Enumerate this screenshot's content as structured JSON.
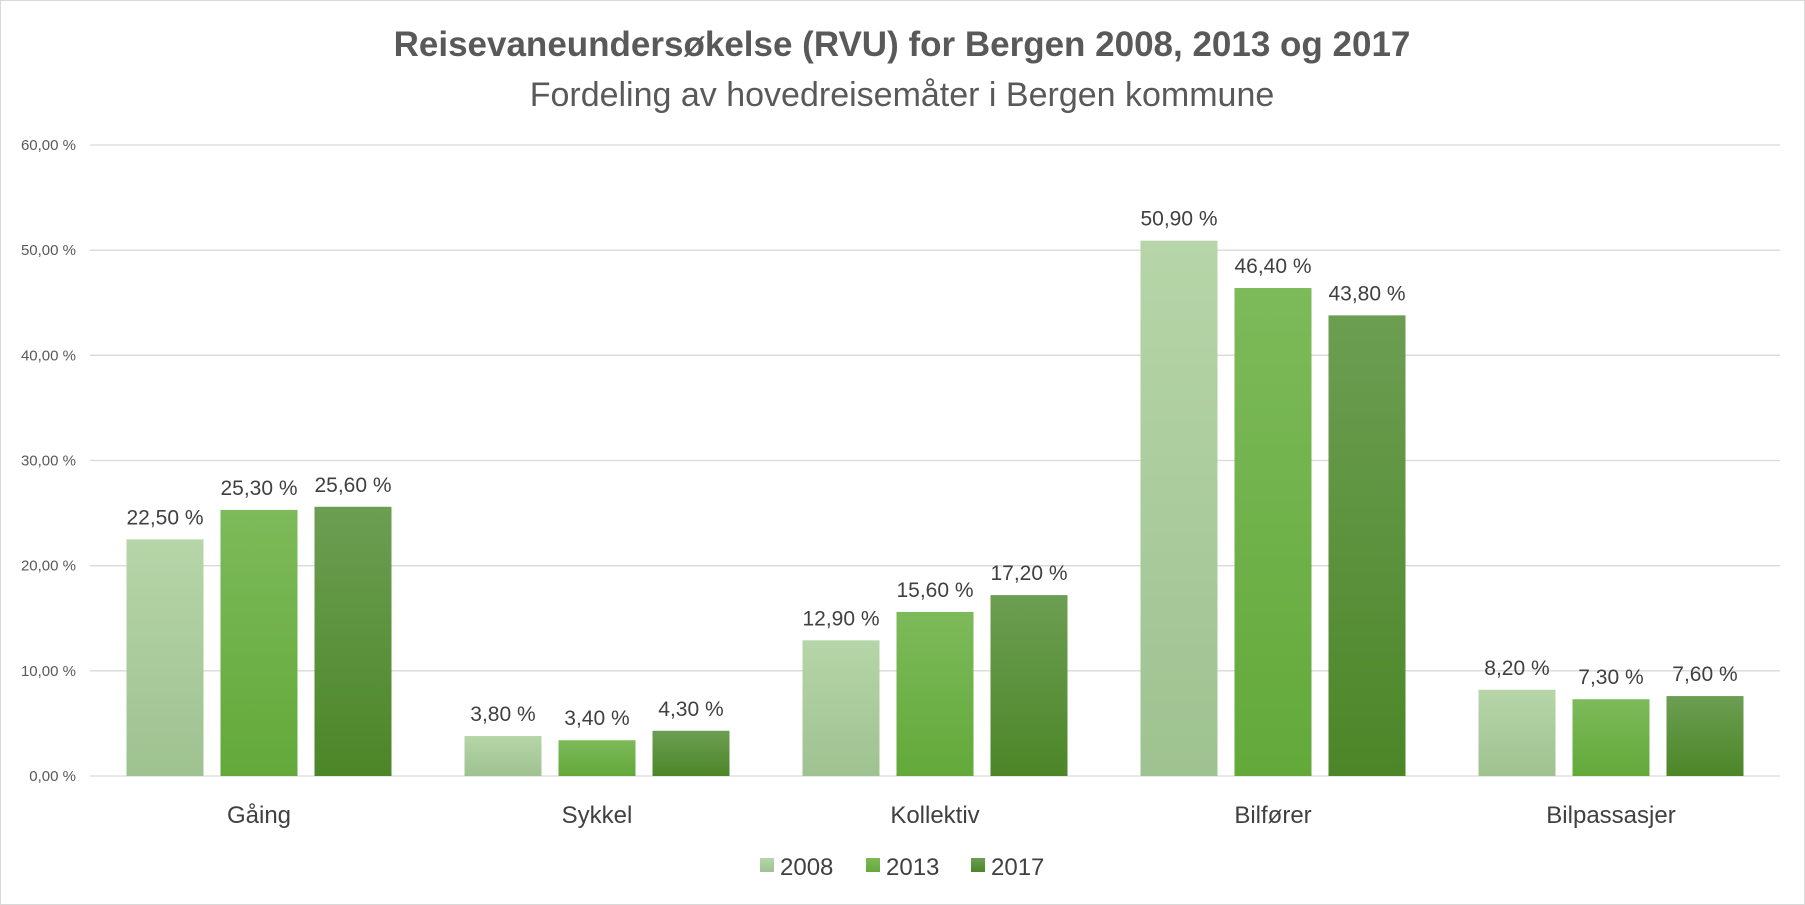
{
  "chart_data": {
    "type": "bar",
    "title": "Reisevaneundersøkelse (RVU) for Bergen 2008, 2013 og 2017",
    "subtitle": "Fordeling av hovedreisemåter i Bergen kommune",
    "xlabel": "",
    "ylabel": "",
    "ylim": [
      0,
      60
    ],
    "yticks": [
      "0,00 %",
      "10,00 %",
      "20,00 %",
      "30,00 %",
      "40,00 %",
      "50,00 %",
      "60,00 %"
    ],
    "grid": true,
    "legend_position": "bottom",
    "categories": [
      "Gåing",
      "Sykkel",
      "Kollektiv",
      "Bilfører",
      "Bilpassasjer"
    ],
    "series": [
      {
        "name": "2008",
        "values": [
          22.5,
          3.8,
          12.9,
          50.9,
          8.2
        ],
        "labels": [
          "22,50 %",
          "3,80 %",
          "12,90 %",
          "50,90 %",
          "8,20 %"
        ],
        "color_top": "#b6d5a8",
        "color_bottom": "#9fc291"
      },
      {
        "name": "2013",
        "values": [
          25.3,
          3.4,
          15.6,
          46.4,
          7.3
        ],
        "labels": [
          "25,30 %",
          "3,40 %",
          "15,60 %",
          "46,40 %",
          "7,30 %"
        ],
        "color_top": "#7dba5a",
        "color_bottom": "#63a93a"
      },
      {
        "name": "2017",
        "values": [
          25.6,
          4.3,
          17.2,
          43.8,
          7.6
        ],
        "labels": [
          "25,60 %",
          "4,30 %",
          "17,20 %",
          "43,80 %",
          "7,60 %"
        ],
        "color_top": "#6c9e52",
        "color_bottom": "#4c8628"
      }
    ]
  }
}
